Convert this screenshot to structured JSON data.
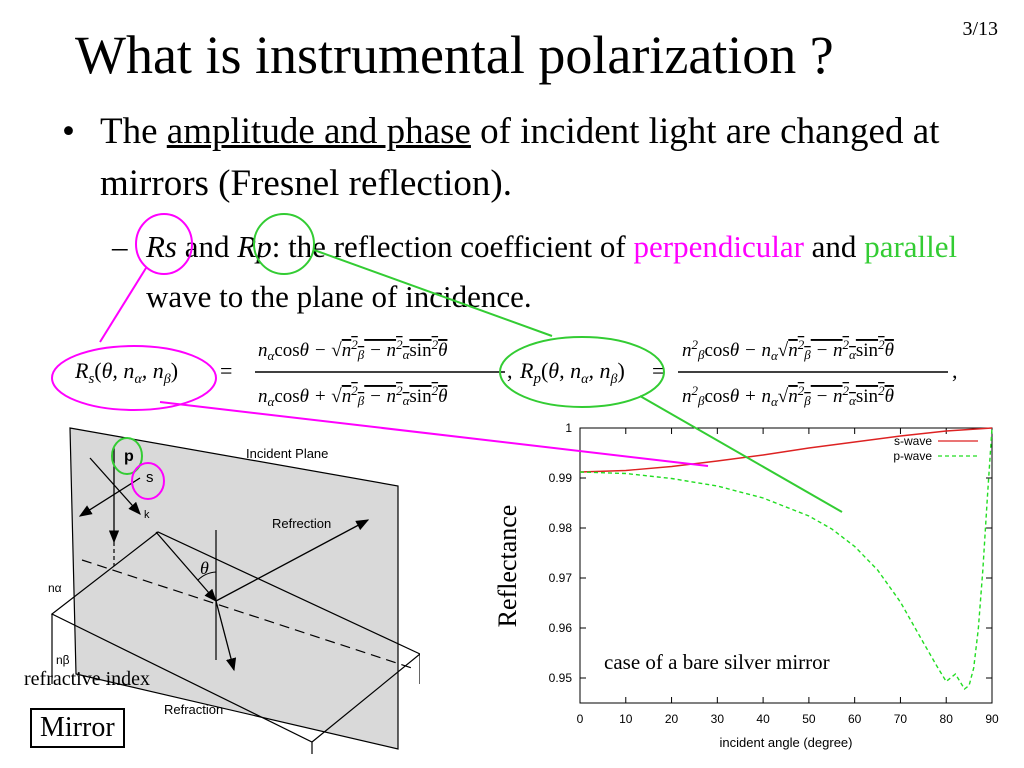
{
  "slide": {
    "page_number": "3/13",
    "title": "What is instrumental polarization ?",
    "bullet1": {
      "prefix": "The ",
      "underlined": "amplitude and phase",
      "suffix": " of incident light are changed at mirrors (Fresnel reflection)."
    },
    "bullet2": {
      "rs": "Rs",
      "and1": " and ",
      "rp": "Rp",
      "middle": ": the reflection coefficient of ",
      "perpendicular": "perpendicular",
      "and2": " and ",
      "parallel": "parallel",
      "end": " wave to the plane of incidence."
    },
    "colors": {
      "magenta": "#ff00ff",
      "green": "#33cc33",
      "s_wave": "#dd2222",
      "p_wave": "#22dd22"
    }
  },
  "diagram": {
    "incident_plane": "Incident Plane",
    "p": "p",
    "s": "s",
    "k": "k",
    "theta": "θ",
    "refraction_out": "Refrection",
    "refraction_in": "Refraction",
    "n_alpha": "nα",
    "n_beta": "nβ",
    "refractive_index": "refractive index",
    "mirror": "Mirror"
  },
  "chart_data": {
    "type": "line",
    "xlabel": "incident angle (degree)",
    "ylabel": "Reflectance",
    "xlim": [
      0,
      90
    ],
    "ylim": [
      0.945,
      1.0
    ],
    "x_ticks": [
      "0",
      "10",
      "20",
      "30",
      "40",
      "50",
      "60",
      "70",
      "80",
      "90"
    ],
    "y_ticks": [
      "0.95",
      "0.96",
      "0.97",
      "0.98",
      "0.99",
      "1"
    ],
    "legend_position": "top-right",
    "annotation": "case of a bare silver mirror",
    "series": [
      {
        "name": "s-wave",
        "x": [
          0,
          10,
          20,
          30,
          40,
          50,
          60,
          70,
          80,
          85,
          90
        ],
        "values": [
          0.9912,
          0.9915,
          0.9923,
          0.9934,
          0.9946,
          0.996,
          0.9972,
          0.9984,
          0.9994,
          0.9997,
          1.0
        ]
      },
      {
        "name": "p-wave",
        "x": [
          0,
          10,
          20,
          30,
          40,
          50,
          55,
          60,
          65,
          70,
          75,
          78,
          80,
          82,
          84,
          85,
          86,
          87,
          88,
          89,
          90
        ],
        "values": [
          0.9912,
          0.9909,
          0.9899,
          0.9884,
          0.986,
          0.9824,
          0.9798,
          0.9763,
          0.9716,
          0.9652,
          0.9571,
          0.9523,
          0.9493,
          0.9508,
          0.9478,
          0.9485,
          0.952,
          0.9598,
          0.9715,
          0.9862,
          1.0
        ]
      }
    ]
  }
}
